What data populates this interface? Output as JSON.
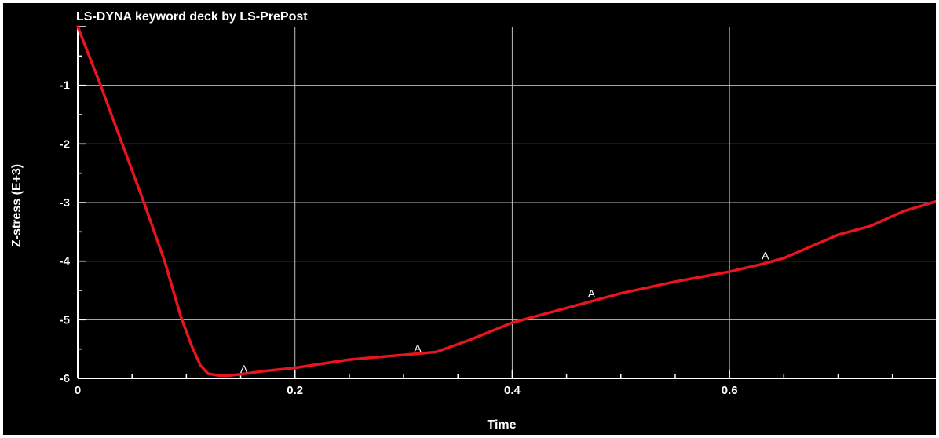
{
  "colors": {
    "background": "#000000",
    "axis": "#ffffff",
    "grid": "#bdbdbd",
    "series": "#e8141e",
    "text": "#ffffff"
  },
  "chart_data": {
    "type": "line",
    "title": "LS-DYNA keyword deck by LS-PrePost",
    "xlabel": "Time",
    "ylabel": "Z-stress (E+3)",
    "xlim": [
      0,
      0.79
    ],
    "ylim": [
      -6,
      0
    ],
    "x_ticks": [
      0,
      0.2,
      0.4,
      0.6
    ],
    "x_tick_labels": [
      "0",
      "0.2",
      "0.4",
      "0.6"
    ],
    "y_ticks": [
      -1,
      -2,
      -3,
      -4,
      -5,
      -6
    ],
    "y_tick_labels": [
      "-1",
      "-2",
      "-3",
      "-4",
      "-5",
      "-6"
    ],
    "grid": true,
    "series": [
      {
        "name": "A",
        "color": "#e8141e",
        "x": [
          0,
          0.02,
          0.04,
          0.06,
          0.08,
          0.095,
          0.105,
          0.113,
          0.12,
          0.13,
          0.14,
          0.15,
          0.17,
          0.2,
          0.25,
          0.3,
          0.33,
          0.36,
          0.4,
          0.45,
          0.5,
          0.55,
          0.6,
          0.63,
          0.65,
          0.7,
          0.73,
          0.76,
          0.79
        ],
        "y": [
          0,
          -0.95,
          -1.95,
          -2.95,
          -4.0,
          -4.95,
          -5.45,
          -5.78,
          -5.92,
          -5.95,
          -5.95,
          -5.93,
          -5.88,
          -5.82,
          -5.68,
          -5.6,
          -5.55,
          -5.35,
          -5.05,
          -4.8,
          -4.55,
          -4.35,
          -4.18,
          -4.05,
          -3.95,
          -3.55,
          -3.4,
          -3.15,
          -2.98
        ]
      }
    ],
    "markers": [
      {
        "label": "A",
        "x": 0.153,
        "y": -5.93
      },
      {
        "label": "A",
        "x": 0.313,
        "y": -5.58
      },
      {
        "label": "A",
        "x": 0.473,
        "y": -4.65
      },
      {
        "label": "A",
        "x": 0.633,
        "y": -4.0
      }
    ]
  }
}
